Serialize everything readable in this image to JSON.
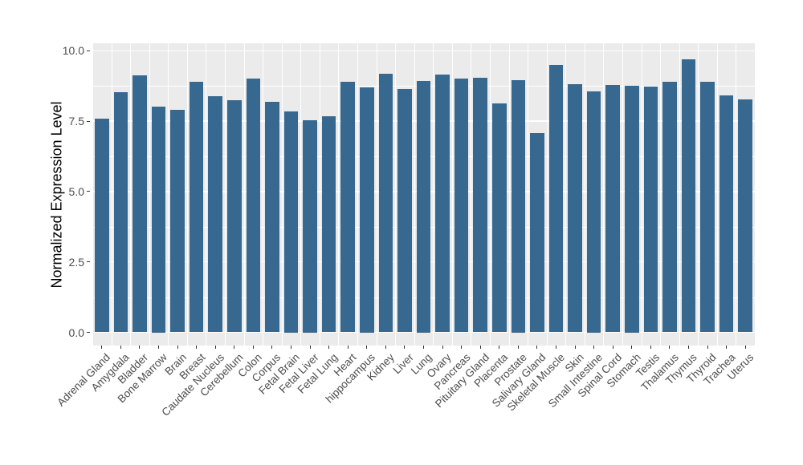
{
  "figure": {
    "background_color": "#ffffff",
    "panel_color": "#ebebeb",
    "grid_color": "#ffffff",
    "bar_color": "#376890",
    "tick_mark_color": "#333333",
    "axis_text_color": "#4d4d4d",
    "axis_title_color": "#000000"
  },
  "chart_data": {
    "type": "bar",
    "title": "",
    "xlabel": "",
    "ylabel": "Normalized Expression Level",
    "categories": [
      "Adrenal Gland",
      "Amygdala",
      "Bladder",
      "Bone Marrow",
      "Brain",
      "Breast",
      "Caudate Nucleus",
      "Cerebellum",
      "Colon",
      "Corpus",
      "Fetal Brain",
      "Fetal Liver",
      "Fetal Lung",
      "Heart",
      "hippocampus",
      "Kidney",
      "Liver",
      "Lung",
      "Ovary",
      "Pancreas",
      "Pituitary Gland",
      "Placenta",
      "Prostate",
      "Salivary Gland",
      "Skeletal Muscle",
      "Skin",
      "Small Intestine",
      "Spinal Cord",
      "Stomach",
      "Testis",
      "Thalamus",
      "Thymus",
      "Thyroid",
      "Trachea",
      "Uterus"
    ],
    "values": [
      7.58,
      8.54,
      9.12,
      8.03,
      7.91,
      8.9,
      8.38,
      8.24,
      9.0,
      8.18,
      7.86,
      7.53,
      7.67,
      8.9,
      8.7,
      9.18,
      8.65,
      8.94,
      9.16,
      9.02,
      9.05,
      8.12,
      8.97,
      7.07,
      9.5,
      8.81,
      8.57,
      8.79,
      8.77,
      8.73,
      8.9,
      9.7,
      8.89,
      8.41,
      8.27
    ],
    "ylim": [
      0,
      10
    ],
    "yticks": [
      0.0,
      2.5,
      5.0,
      7.5,
      10.0
    ],
    "ytick_labels": [
      "0.0",
      "2.5",
      "5.0",
      "7.5",
      "10.0"
    ],
    "yminor_ticks": [
      1.25,
      3.75,
      6.25,
      8.75
    ],
    "grid": true,
    "legend": "none",
    "bar_orientation": "vertical"
  }
}
